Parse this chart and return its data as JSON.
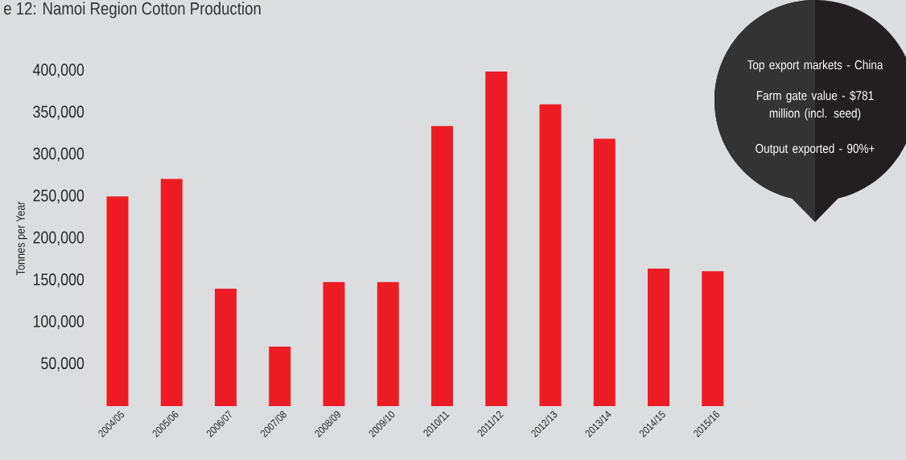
{
  "chart_data": {
    "type": "bar",
    "title": "e 12: Namoi Region Cotton Production",
    "ylabel": "Tonnes per Year",
    "categories": [
      "2004/05",
      "2005/06",
      "2006/07",
      "2007/08",
      "2008/09",
      "2009/10",
      "2010/11",
      "2011/12",
      "2012/13",
      "2013/14",
      "2014/15",
      "2015/16"
    ],
    "values": [
      250000,
      271000,
      140000,
      71000,
      148000,
      148000,
      334000,
      399000,
      360000,
      319000,
      164000,
      161000
    ],
    "color": "#ed1c24",
    "ylim": [
      0,
      400000
    ],
    "yticks": [
      {
        "value": 50000,
        "label": "50,000"
      },
      {
        "value": 100000,
        "label": "100,000"
      },
      {
        "value": 150000,
        "label": "150,000"
      },
      {
        "value": 200000,
        "label": "200,000"
      },
      {
        "value": 250000,
        "label": "250,000"
      },
      {
        "value": 300000,
        "label": "300,000"
      },
      {
        "value": 350000,
        "label": "350,000"
      },
      {
        "value": 400000,
        "label": "400,000"
      }
    ],
    "annotations": [
      "Top export markets - China",
      "Farm gate value - $781 million (incl. seed)",
      "Output exported - 90%+"
    ]
  }
}
